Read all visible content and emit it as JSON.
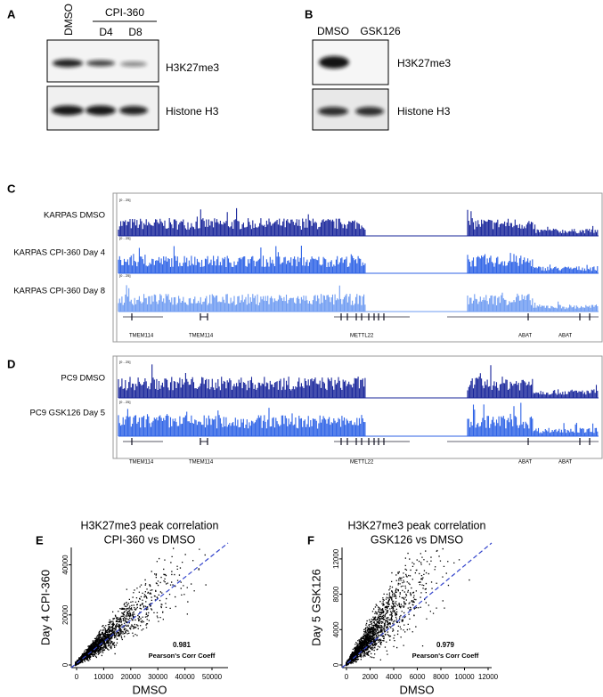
{
  "panels": {
    "a": {
      "label": "A",
      "group": "CPI-360",
      "lanes": [
        "DMSO",
        "D4",
        "D8"
      ],
      "blots": [
        "H3K27me3",
        "Histone H3"
      ]
    },
    "b": {
      "label": "B",
      "lanes": [
        "DMSO",
        "GSK126"
      ],
      "blots": [
        "H3K27me3",
        "Histone H3"
      ]
    },
    "c": {
      "label": "C",
      "track_range": "[0 - 25]",
      "tracks": [
        "KARPAS DMSO",
        "KARPAS CPI-360 Day 4",
        "KARPAS CPI-360 Day 8"
      ],
      "genes": [
        "TMEM114",
        "TMEM114",
        "METTL22",
        "ABAT",
        "ABAT"
      ]
    },
    "d": {
      "label": "D",
      "track_range": "[0 - 25]",
      "tracks": [
        "PC9 DMSO",
        "PC9 GSK126 Day 5"
      ],
      "genes": [
        "TMEM114",
        "TMEM114",
        "METTL22",
        "ABAT",
        "ABAT"
      ]
    },
    "e": {
      "label": "E",
      "title": [
        "H3K27me3 peak correlation",
        "CPI-360 vs DMSO"
      ],
      "xlabel": "DMSO",
      "ylabel": "Day 4  CPI-360",
      "xticks": [
        "0",
        "10000",
        "20000",
        "30000",
        "40000",
        "50000"
      ],
      "yticks": [
        "0",
        "20000",
        "40000"
      ],
      "coef": "0.981",
      "coef_label": "Pearson's Corr Coeff"
    },
    "f": {
      "label": "F",
      "title": [
        "H3K27me3 peak correlation",
        "GSK126 vs DMSO"
      ],
      "xlabel": "DMSO",
      "ylabel": "Day 5  GSK126",
      "xticks": [
        "0",
        "2000",
        "4000",
        "6000",
        "8000",
        "10000",
        "12000"
      ],
      "yticks": [
        "0",
        "4000",
        "8000",
        "12000"
      ],
      "coef": "0.979",
      "coef_label": "Pearson's Corr Coeff"
    }
  }
}
